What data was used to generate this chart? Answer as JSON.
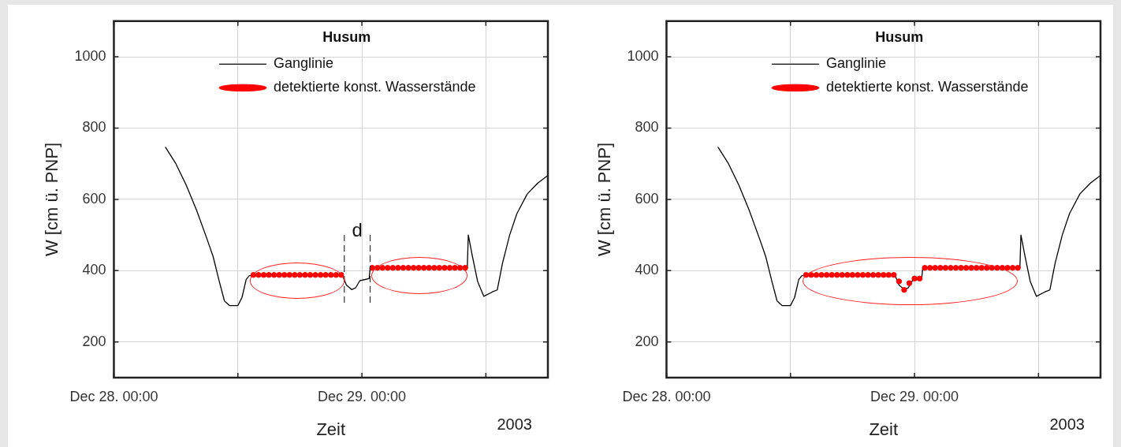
{
  "chart_data": [
    {
      "type": "line",
      "xlabel": "Zeit",
      "ylabel": "W [cm ü. PNP]",
      "legend_title": "Husum",
      "legend": "top",
      "grid": true,
      "xlim": [
        "2003-12-28T00:00",
        "2003-12-29T18:00"
      ],
      "ylim": [
        100,
        1100
      ],
      "xticks": [
        {
          "value": "2003-12-28T00:00",
          "label": "Dec 28. 00:00"
        },
        {
          "value": "2003-12-28T12:00",
          "label": null
        },
        {
          "value": "2003-12-29T00:00",
          "label": "Dec 29. 00:00"
        },
        {
          "value": "2003-12-29T12:00",
          "label": null
        }
      ],
      "yticks": [
        200,
        400,
        600,
        800,
        1000
      ],
      "series": [
        {
          "name": "Ganglinie",
          "type": "line",
          "color": "#000000",
          "x": [
            "2003-12-28T05:00",
            "2003-12-28T06:00",
            "2003-12-28T07:00",
            "2003-12-28T08:00",
            "2003-12-28T09:00",
            "2003-12-28T09:36",
            "2003-12-28T10:12",
            "2003-12-28T10:42",
            "2003-12-28T11:12",
            "2003-12-28T12:00",
            "2003-12-28T12:24",
            "2003-12-28T12:48",
            "2003-12-28T13:06",
            "2003-12-28T22:06",
            "2003-12-28T22:30",
            "2003-12-28T23:00",
            "2003-12-28T23:24",
            "2003-12-28T23:48",
            "2003-12-29T00:42",
            "2003-12-29T00:48",
            "2003-12-29T10:12",
            "2003-12-29T10:18",
            "2003-12-29T10:42",
            "2003-12-29T11:12",
            "2003-12-29T11:48",
            "2003-12-29T12:36",
            "2003-12-29T13:06",
            "2003-12-29T13:36",
            "2003-12-29T14:18",
            "2003-12-29T15:00",
            "2003-12-29T16:00",
            "2003-12-29T17:00",
            "2003-12-29T17:48",
            "2003-12-29T18:00"
          ],
          "values": [
            746,
            700,
            640,
            570,
            490,
            440,
            370,
            315,
            302,
            302,
            325,
            375,
            386,
            388,
            360,
            347,
            352,
            372,
            378,
            408,
            408,
            500,
            440,
            370,
            328,
            340,
            346,
            420,
            500,
            560,
            615,
            645,
            663,
            667
          ]
        },
        {
          "name": "detektierte konst. Wasserstände",
          "type": "scatter",
          "marker": "circle",
          "color": "#ff0000",
          "x": [
            "2003-12-28T13:30",
            "2003-12-28T14:00",
            "2003-12-28T14:30",
            "2003-12-28T15:00",
            "2003-12-28T15:30",
            "2003-12-28T16:00",
            "2003-12-28T16:30",
            "2003-12-28T17:00",
            "2003-12-28T17:30",
            "2003-12-28T18:00",
            "2003-12-28T18:30",
            "2003-12-28T19:00",
            "2003-12-28T19:30",
            "2003-12-28T20:00",
            "2003-12-28T20:30",
            "2003-12-28T21:00",
            "2003-12-28T21:30",
            "2003-12-28T22:00",
            "2003-12-29T01:00",
            "2003-12-29T01:30",
            "2003-12-29T02:00",
            "2003-12-29T02:30",
            "2003-12-29T03:00",
            "2003-12-29T03:30",
            "2003-12-29T04:00",
            "2003-12-29T04:30",
            "2003-12-29T05:00",
            "2003-12-29T05:30",
            "2003-12-29T06:00",
            "2003-12-29T06:30",
            "2003-12-29T07:00",
            "2003-12-29T07:30",
            "2003-12-29T08:00",
            "2003-12-29T08:30",
            "2003-12-29T09:00",
            "2003-12-29T09:30",
            "2003-12-29T10:00"
          ],
          "values": [
            388,
            388,
            388,
            388,
            388,
            388,
            388,
            388,
            388,
            388,
            388,
            388,
            388,
            388,
            388,
            388,
            388,
            388,
            408,
            408,
            408,
            408,
            408,
            408,
            408,
            408,
            408,
            408,
            408,
            408,
            408,
            408,
            408,
            408,
            408,
            408,
            408
          ]
        }
      ],
      "ref_lines": [
        {
          "axis": "x",
          "value": "2003-12-28T22:18",
          "label": "d",
          "line_style": "dashed"
        },
        {
          "axis": "x",
          "value": "2003-12-29T00:48",
          "line_style": "dashed"
        }
      ],
      "annotations": [
        "2003"
      ]
    },
    {
      "type": "line",
      "xlabel": "Zeit",
      "ylabel": "W [cm ü. PNP]",
      "legend_title": "Husum",
      "legend": "top",
      "grid": true,
      "xlim": [
        "2003-12-28T00:00",
        "2003-12-29T18:00"
      ],
      "ylim": [
        100,
        1100
      ],
      "xticks": [
        {
          "value": "2003-12-28T00:00",
          "label": "Dec 28. 00:00"
        },
        {
          "value": "2003-12-28T12:00",
          "label": null
        },
        {
          "value": "2003-12-29T00:00",
          "label": "Dec 29. 00:00"
        },
        {
          "value": "2003-12-29T12:00",
          "label": null
        }
      ],
      "yticks": [
        200,
        400,
        600,
        800,
        1000
      ],
      "series": [
        {
          "name": "Ganglinie",
          "type": "line",
          "color": "#000000",
          "x": [
            "2003-12-28T05:00",
            "2003-12-28T06:00",
            "2003-12-28T07:00",
            "2003-12-28T08:00",
            "2003-12-28T09:00",
            "2003-12-28T09:36",
            "2003-12-28T10:12",
            "2003-12-28T10:42",
            "2003-12-28T11:12",
            "2003-12-28T12:00",
            "2003-12-28T12:24",
            "2003-12-28T12:48",
            "2003-12-28T13:06",
            "2003-12-28T22:06",
            "2003-12-28T22:30",
            "2003-12-28T23:00",
            "2003-12-28T23:24",
            "2003-12-28T23:48",
            "2003-12-29T00:42",
            "2003-12-29T00:48",
            "2003-12-29T10:12",
            "2003-12-29T10:18",
            "2003-12-29T10:42",
            "2003-12-29T11:12",
            "2003-12-29T11:48",
            "2003-12-29T12:36",
            "2003-12-29T13:06",
            "2003-12-29T13:36",
            "2003-12-29T14:18",
            "2003-12-29T15:00",
            "2003-12-29T16:00",
            "2003-12-29T17:00",
            "2003-12-29T17:48",
            "2003-12-29T18:00"
          ],
          "values": [
            746,
            700,
            640,
            570,
            490,
            440,
            370,
            315,
            302,
            302,
            325,
            375,
            386,
            388,
            360,
            347,
            352,
            372,
            378,
            408,
            408,
            500,
            440,
            370,
            328,
            340,
            346,
            420,
            500,
            560,
            615,
            645,
            663,
            667
          ]
        },
        {
          "name": "detektierte konst. Wasserstände",
          "type": "scatter",
          "marker": "circle",
          "color": "#ff0000",
          "x": [
            "2003-12-28T13:30",
            "2003-12-28T14:00",
            "2003-12-28T14:30",
            "2003-12-28T15:00",
            "2003-12-28T15:30",
            "2003-12-28T16:00",
            "2003-12-28T16:30",
            "2003-12-28T17:00",
            "2003-12-28T17:30",
            "2003-12-28T18:00",
            "2003-12-28T18:30",
            "2003-12-28T19:00",
            "2003-12-28T19:30",
            "2003-12-28T20:00",
            "2003-12-28T20:30",
            "2003-12-28T21:00",
            "2003-12-28T21:30",
            "2003-12-28T22:00",
            "2003-12-28T22:30",
            "2003-12-28T23:00",
            "2003-12-28T23:30",
            "2003-12-29T00:00",
            "2003-12-29T00:30",
            "2003-12-29T01:00",
            "2003-12-29T01:30",
            "2003-12-29T02:00",
            "2003-12-29T02:30",
            "2003-12-29T03:00",
            "2003-12-29T03:30",
            "2003-12-29T04:00",
            "2003-12-29T04:30",
            "2003-12-29T05:00",
            "2003-12-29T05:30",
            "2003-12-29T06:00",
            "2003-12-29T06:30",
            "2003-12-29T07:00",
            "2003-12-29T07:30",
            "2003-12-29T08:00",
            "2003-12-29T08:30",
            "2003-12-29T09:00",
            "2003-12-29T09:30",
            "2003-12-29T10:00"
          ],
          "values": [
            388,
            388,
            388,
            388,
            388,
            388,
            388,
            388,
            388,
            388,
            388,
            388,
            388,
            388,
            388,
            388,
            388,
            388,
            370,
            346,
            365,
            378,
            378,
            408,
            408,
            408,
            408,
            408,
            408,
            408,
            408,
            408,
            408,
            408,
            408,
            408,
            408,
            408,
            408,
            408,
            408,
            408
          ]
        }
      ],
      "annotations": [
        "2003"
      ]
    }
  ]
}
